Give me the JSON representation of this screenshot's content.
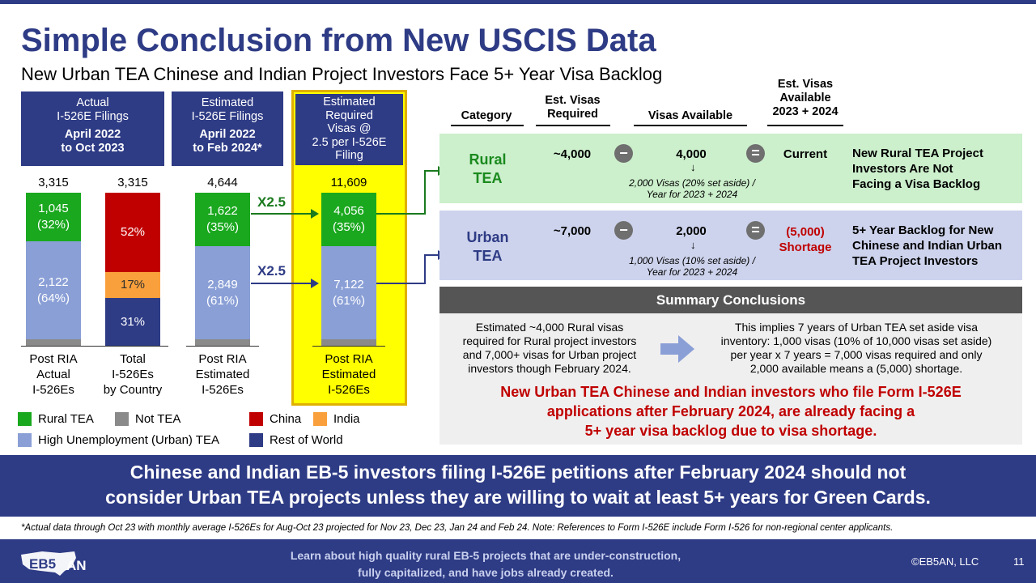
{
  "header": {
    "title": "Simple Conclusion from New USCIS Data",
    "subtitle": "New Urban TEA Chinese and Indian Project Investors Face 5+ Year Visa Backlog"
  },
  "columns": [
    {
      "head_lines": [
        "Actual",
        "I-526E Filings"
      ],
      "head_bold": [
        "April 2022",
        "to Oct 2023"
      ],
      "total": "3,315",
      "segments": [
        {
          "label": "1,045\n(32%)",
          "share": 0.32,
          "color": "green"
        },
        {
          "label": "2,122\n(64%)",
          "share": 0.64,
          "color": "light-blue"
        },
        {
          "label": "",
          "share": 0.04,
          "color": "gray"
        }
      ],
      "label": "Post RIA\nActual\nI-526Es"
    },
    {
      "head_lines": [],
      "head_bold": [],
      "total": "3,315",
      "segments": [
        {
          "label": "52%",
          "share": 0.52,
          "color": "red"
        },
        {
          "label": "17%",
          "share": 0.17,
          "color": "orange"
        },
        {
          "label": "31%",
          "share": 0.31,
          "color": "navy"
        }
      ],
      "label": "Total\nI-526Es\nby Country"
    },
    {
      "head_lines": [
        "Estimated",
        "I-526E Filings"
      ],
      "head_bold": [
        "April 2022",
        "to Feb 2024*"
      ],
      "total": "4,644",
      "segments": [
        {
          "label": "1,622\n(35%)",
          "share": 0.35,
          "color": "green"
        },
        {
          "label": "2,849\n(61%)",
          "share": 0.61,
          "color": "light-blue"
        },
        {
          "label": "",
          "share": 0.04,
          "color": "gray"
        }
      ],
      "label": "Post RIA\nEstimated\nI-526Es"
    },
    {
      "head_lines": [
        "Estimated",
        "Required",
        "Visas @",
        "2.5 per I-526E",
        "Filing"
      ],
      "head_bold": [],
      "total": "11,609",
      "segments": [
        {
          "label": "4,056\n(35%)",
          "share": 0.35,
          "color": "green"
        },
        {
          "label": "7,122\n(61%)",
          "share": 0.61,
          "color": "light-blue"
        },
        {
          "label": "",
          "share": 0.04,
          "color": "gray"
        }
      ],
      "label": "Post RIA\nEstimated\nI-526Es"
    }
  ],
  "multipliers": {
    "top": "X2.5",
    "bottom": "X2.5"
  },
  "legend": [
    {
      "label": "Rural TEA",
      "color": "#1aa81e"
    },
    {
      "label": "Not TEA",
      "color": "#8a8a8a"
    },
    {
      "label": "China",
      "color": "#c00000"
    },
    {
      "label": "India",
      "color": "#f9a03c"
    },
    {
      "label": "High Unemployment  (Urban) TEA",
      "color": "#8a9fd6"
    },
    {
      "label": "Rest of World",
      "color": "#2e3b85"
    }
  ],
  "table": {
    "headers": {
      "category": "Category",
      "required": "Est. Visas\nRequired",
      "available": "Visas Available",
      "available_2023_2024": "Est. Visas\nAvailable\n2023 + 2024"
    },
    "rows": [
      {
        "category": "Rural\nTEA",
        "required": "~4,000",
        "minus": "−",
        "available": "4,000",
        "note": "2,000 Visas (20% set aside) /\nYear for 2023 + 2024",
        "equals": "=",
        "result": "Current",
        "description": "New Rural TEA Project\nInvestors Are Not\nFacing a Visa Backlog"
      },
      {
        "category": "Urban\nTEA",
        "required": "~7,000",
        "minus": "−",
        "available": "2,000",
        "note": "1,000 Visas (10% set aside) /\nYear for 2023 + 2024",
        "equals": "=",
        "result": "(5,000)\nShortage",
        "description": "5+ Year Backlog for New\nChinese and Indian Urban\nTEA Project Investors"
      }
    ]
  },
  "summary": {
    "heading": "Summary Conclusions",
    "left": "Estimated ~4,000 Rural visas\nrequired for Rural project investors\nand 7,000+ visas for Urban project\ninvestors though February 2024.",
    "right": "This implies 7 years of Urban TEA set aside visa\ninventory:  1,000 visas (10% of 10,000 visas set aside)\nper year x 7 years = 7,000 visas required and only\n2,000 available means a (5,000) shortage.",
    "conclusion": "New Urban TEA Chinese and Indian investors who file Form I-526E\napplications after February 2024, are already facing a\n5+ year visa backlog due to visa shortage."
  },
  "banner": "Chinese and Indian EB-5 investors filing I-526E petitions after February 2024 should not\nconsider Urban TEA projects unless they are willing to wait at least 5+ years for Green Cards.",
  "footnote": "*Actual data through Oct 23 with monthly average I-526Es for Aug-Oct 23 projected for Nov 23, Dec 23, Jan 24 and Feb 24. Note: References to Form I-526E include Form I-526 for non-regional  center applicants.",
  "footer": {
    "logo_text": "EB5AN",
    "text": "Learn about high quality rural EB-5 projects that are under-construction,\nfully capitalized, and have jobs already created.",
    "copyright": "©EB5AN, LLC",
    "page_number": "11"
  },
  "colors": {
    "navy": "#2e3b85",
    "green": "#1aa81e",
    "light_blue": "#8a9fd6",
    "red": "#c00000",
    "orange": "#f9a03c",
    "gray": "#8a8a8a",
    "highlight_yellow": "#ffff00",
    "highlight_border": "#e0b000"
  }
}
